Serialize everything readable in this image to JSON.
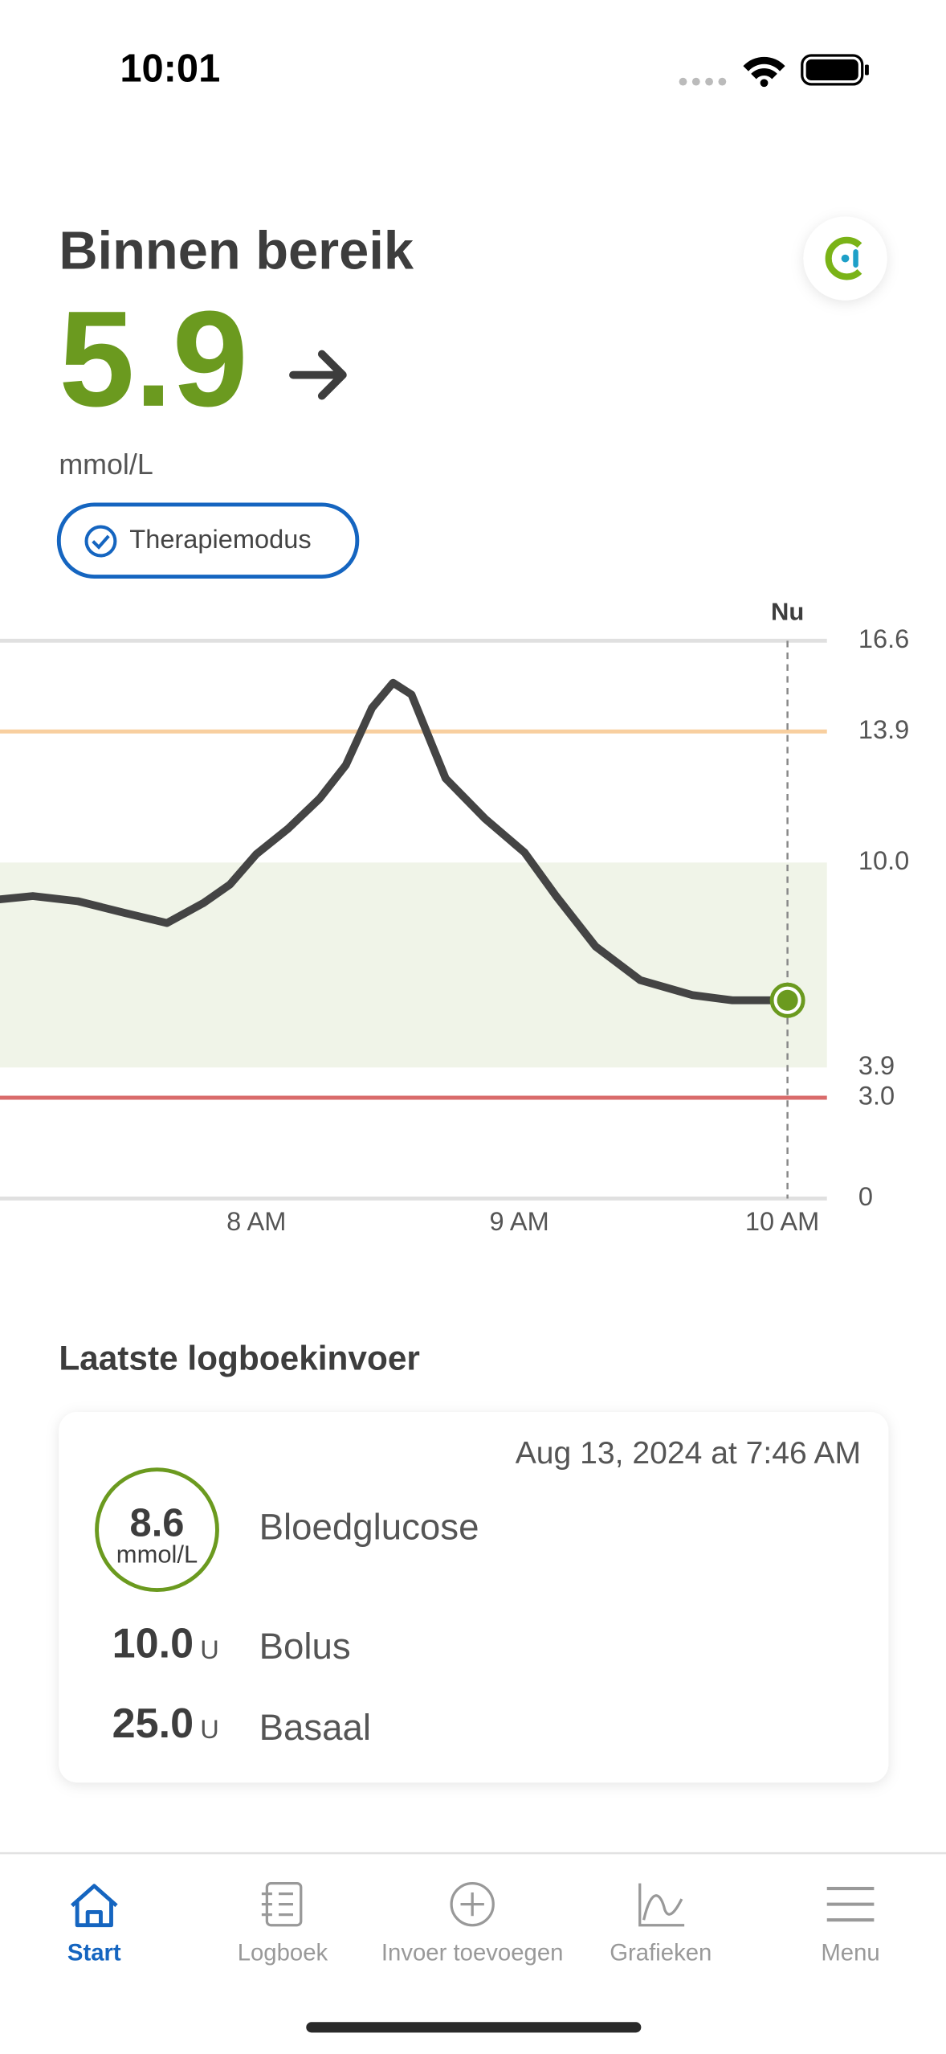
{
  "status_bar": {
    "time": "10:01"
  },
  "header": {
    "title": "Binnen bereik",
    "value": "5.9",
    "unit": "mmol/L",
    "mode": "Therapiemodus"
  },
  "chart_data": {
    "type": "line",
    "x": [
      7.02,
      7.15,
      7.32,
      7.5,
      7.66,
      7.8,
      7.9,
      8.0,
      8.12,
      8.24,
      8.34,
      8.44,
      8.52,
      8.59,
      8.72,
      8.87,
      9.02,
      9.14,
      9.29,
      9.46,
      9.66,
      9.81,
      10.02
    ],
    "values": [
      8.9,
      9.0,
      8.85,
      8.5,
      8.2,
      8.8,
      9.35,
      10.25,
      11.0,
      11.9,
      12.9,
      14.6,
      15.35,
      15.0,
      12.5,
      11.3,
      10.3,
      9.0,
      7.5,
      6.5,
      6.05,
      5.9,
      5.9
    ],
    "color": "#444444",
    "xlim": [
      7.025,
      10.17
    ],
    "xticks": [
      {
        "value": 8,
        "label": "8 AM"
      },
      {
        "value": 9,
        "label": "9 AM"
      },
      {
        "value": 10,
        "label": "10 AM"
      }
    ],
    "ylim": [
      0,
      16.6
    ],
    "yticks": [
      0,
      {
        "value": 3,
        "label": "3.0"
      },
      3.9,
      {
        "value": 10,
        "label": "10.0"
      },
      13.9,
      16.6
    ],
    "target_range": [
      3.9,
      10
    ],
    "target_color": "#f0f4e8",
    "high_line": 13.9,
    "high_color": "#f8cf9f",
    "low_line": 3.0,
    "low_color": "#d96b6b",
    "marker_color": "#6b9a1f",
    "now": {
      "x": 10.02,
      "label": "Nu"
    }
  },
  "log": {
    "title": "Laatste logboekinvoer",
    "date": "Aug 13, 2024 at 7:46 AM",
    "glucose": {
      "value": "8.6",
      "unit": "mmol/L",
      "label": "Bloedglucose"
    },
    "entries": [
      {
        "value": "10.0",
        "unit": "U",
        "label": "Bolus"
      },
      {
        "value": "25.0",
        "unit": "U",
        "label": "Basaal"
      }
    ]
  },
  "nav": [
    {
      "label": "Start"
    },
    {
      "label": "Logboek"
    },
    {
      "label": "Invoer toevoegen"
    },
    {
      "label": "Grafieken"
    },
    {
      "label": "Menu"
    }
  ]
}
